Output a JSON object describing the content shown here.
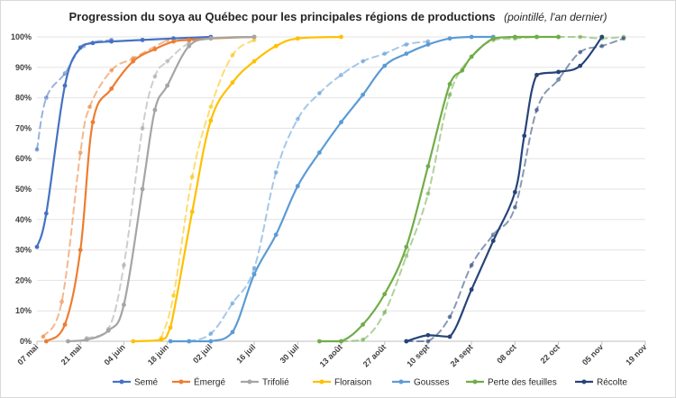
{
  "chart_data": {
    "type": "line",
    "title": "Progression du soya au Québec pour les principales régions de productions",
    "subtitle": "(pointillé, l'an dernier)",
    "xlabel": "",
    "ylabel": "",
    "x_ticks": [
      "07 mai",
      "21 mai",
      "04 juin",
      "18 juin",
      "02 juil",
      "16 juil",
      "30 juil",
      "13 août",
      "27 août",
      "10 sept",
      "24 sept",
      "08 oct",
      "22 oct",
      "05 nov",
      "19 nov"
    ],
    "x_range_days": [
      0,
      196
    ],
    "y_ticks": [
      "0%",
      "10%",
      "20%",
      "30%",
      "40%",
      "50%",
      "60%",
      "70%",
      "80%",
      "90%",
      "100%"
    ],
    "ylim": [
      0,
      100
    ],
    "grid": "horizontal",
    "legend_position": "bottom",
    "colors": {
      "semé": "#4472c4",
      "émergé": "#ed7d31",
      "trifolié": "#a5a5a5",
      "floraison": "#ffc000",
      "gousses": "#5b9bd5",
      "perte": "#70ad47",
      "récolte": "#264478"
    },
    "series": [
      {
        "name": "Semé",
        "color": "#4472c4",
        "style": "solid",
        "x": [
          0,
          3,
          9,
          14,
          18,
          24,
          34,
          44,
          56
        ],
        "y": [
          31,
          42,
          84,
          96.5,
          98,
          98.5,
          99,
          99.5,
          100
        ]
      },
      {
        "name": "Semé",
        "color": "#4472c4",
        "style": "dashed",
        "legend": false,
        "x": [
          0,
          3,
          9,
          15,
          24
        ],
        "y": [
          63,
          80,
          88,
          97,
          99
        ]
      },
      {
        "name": "Émergé",
        "color": "#ed7d31",
        "style": "solid",
        "x": [
          3,
          9,
          14,
          18,
          24,
          31,
          38,
          44,
          49,
          56,
          70
        ],
        "y": [
          0,
          5.5,
          30,
          72,
          83,
          92,
          96,
          98.5,
          99,
          99.5,
          100
        ]
      },
      {
        "name": "Émergé",
        "color": "#ed7d31",
        "style": "dashed",
        "legend": false,
        "x": [
          2,
          8,
          14,
          17,
          24,
          31,
          42
        ],
        "y": [
          1.5,
          13,
          62,
          77,
          89,
          93,
          99
        ]
      },
      {
        "name": "Trifolié",
        "color": "#a5a5a5",
        "style": "solid",
        "x": [
          10,
          16,
          23,
          28,
          34,
          38,
          42,
          49,
          56,
          70
        ],
        "y": [
          0,
          0.5,
          3.5,
          12,
          50,
          76,
          84,
          97,
          99.5,
          100
        ]
      },
      {
        "name": "Trifolié",
        "color": "#a5a5a5",
        "style": "dashed",
        "legend": false,
        "x": [
          16,
          23,
          28,
          34,
          38,
          42,
          49,
          56
        ],
        "y": [
          1,
          4,
          25,
          70,
          87,
          92,
          98,
          99.5
        ]
      },
      {
        "name": "Floraison",
        "color": "#ffc000",
        "style": "solid",
        "x": [
          31,
          40,
          43,
          50,
          56,
          63,
          70,
          77,
          84,
          98
        ],
        "y": [
          0,
          0.5,
          4.5,
          42.5,
          72.5,
          85,
          92,
          97,
          99.5,
          100
        ]
      },
      {
        "name": "Floraison",
        "color": "#ffc000",
        "style": "dashed",
        "legend": false,
        "x": [
          40,
          44,
          50,
          56,
          63,
          70
        ],
        "y": [
          1,
          15,
          54,
          77,
          94,
          99
        ]
      },
      {
        "name": "Gousses",
        "color": "#5b9bd5",
        "style": "solid",
        "x": [
          43,
          49,
          56,
          63,
          70,
          77,
          84,
          91,
          98,
          105,
          112,
          119,
          126,
          133,
          140,
          147
        ],
        "y": [
          0,
          0,
          0,
          3,
          22,
          35,
          51,
          62,
          72,
          81,
          90.5,
          94.5,
          97.5,
          99.5,
          100,
          100
        ]
      },
      {
        "name": "Gousses",
        "color": "#5b9bd5",
        "style": "dashed",
        "legend": false,
        "x": [
          49,
          56,
          63,
          70,
          77,
          84,
          91,
          98,
          105,
          112,
          119,
          126
        ],
        "y": [
          0,
          2.5,
          12.5,
          24,
          55.5,
          73,
          81.5,
          87.5,
          92,
          94.5,
          97.5,
          98.5
        ]
      },
      {
        "name": "Perte des feuilles",
        "color": "#70ad47",
        "style": "solid",
        "x": [
          91,
          98,
          105,
          112,
          119,
          126,
          133,
          137,
          140,
          147,
          154,
          161,
          168
        ],
        "y": [
          0,
          0,
          5.5,
          15.5,
          31,
          57.5,
          84.5,
          89,
          93.5,
          99.5,
          100,
          100,
          100
        ]
      },
      {
        "name": "Perte des feuilles",
        "color": "#70ad47",
        "style": "dashed",
        "legend": false,
        "x": [
          98,
          105,
          112,
          119,
          126,
          133,
          140,
          147,
          154,
          161,
          168,
          175,
          182,
          189
        ],
        "y": [
          0,
          0.5,
          9.5,
          28,
          48.5,
          81,
          93.5,
          99,
          99.5,
          100,
          100,
          100,
          99.5,
          100
        ]
      },
      {
        "name": "Récolte",
        "color": "#264478",
        "style": "solid",
        "x": [
          119,
          126,
          133,
          140,
          147,
          154,
          157,
          161,
          168,
          175,
          182
        ],
        "y": [
          0,
          2,
          1.5,
          17,
          33,
          49,
          67.5,
          87.5,
          88.5,
          90.5,
          100
        ]
      },
      {
        "name": "Récolte",
        "color": "#264478",
        "style": "dashed",
        "legend": false,
        "x": [
          119,
          126,
          133,
          140,
          147,
          154,
          161,
          168,
          175,
          182,
          189
        ],
        "y": [
          0,
          0,
          8,
          25,
          35,
          44,
          76,
          86,
          95,
          97,
          99.5
        ]
      }
    ]
  }
}
